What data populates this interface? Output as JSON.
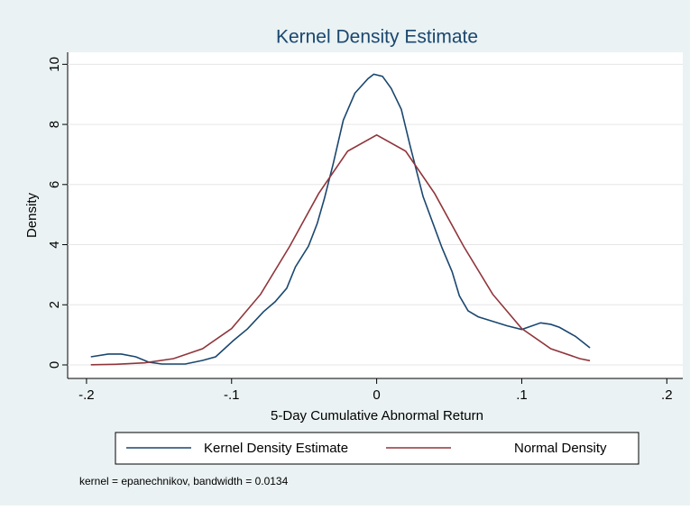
{
  "chart_data": {
    "type": "line",
    "title": "Kernel Density Estimate",
    "x_label": "5-Day Cumulative Abnormal Return",
    "y_label": "Density",
    "note": "kernel = epanechnikov, bandwidth = 0.0134",
    "xlim": [
      -0.213,
      0.211
    ],
    "ylim": [
      -0.45,
      10.4
    ],
    "xticks": [
      {
        "value": -0.2,
        "label": "-.2"
      },
      {
        "value": -0.1,
        "label": "-.1"
      },
      0,
      {
        "value": 0.1,
        "label": ".1"
      },
      {
        "value": 0.2,
        "label": ".2"
      }
    ],
    "yticks": [
      0,
      2,
      4,
      6,
      8,
      10
    ],
    "grid": true,
    "legend": "bottom",
    "series": [
      {
        "name": "Kernel Density Estimate",
        "color": "#1a476f",
        "x": [
          -0.197,
          -0.185,
          -0.176,
          -0.166,
          -0.157,
          -0.148,
          -0.132,
          -0.12,
          -0.111,
          -0.099,
          -0.089,
          -0.078,
          -0.07,
          -0.062,
          -0.056,
          -0.047,
          -0.041,
          -0.036,
          -0.03,
          -0.023,
          -0.015,
          -0.006,
          -0.002,
          0.004,
          0.01,
          0.017,
          0.023,
          0.032,
          0.045,
          0.052,
          0.057,
          0.063,
          0.07,
          0.08,
          0.09,
          0.1,
          0.106,
          0.113,
          0.12,
          0.126,
          0.137,
          0.147
        ],
        "values": [
          0.27,
          0.36,
          0.36,
          0.27,
          0.09,
          0.03,
          0.03,
          0.15,
          0.27,
          0.8,
          1.2,
          1.77,
          2.1,
          2.55,
          3.26,
          3.95,
          4.7,
          5.54,
          6.68,
          8.14,
          9.04,
          9.52,
          9.67,
          9.6,
          9.2,
          8.5,
          7.3,
          5.6,
          3.9,
          3.1,
          2.3,
          1.8,
          1.6,
          1.45,
          1.3,
          1.18,
          1.28,
          1.4,
          1.35,
          1.25,
          0.95,
          0.57
        ]
      },
      {
        "name": "Normal Density",
        "color": "#90353b",
        "x": [
          -0.197,
          -0.18,
          -0.16,
          -0.14,
          -0.12,
          -0.1,
          -0.08,
          -0.06,
          -0.04,
          -0.02,
          0,
          0.02,
          0.04,
          0.06,
          0.08,
          0.1,
          0.12,
          0.14,
          0.147
        ],
        "values": [
          0.006,
          0.02,
          0.07,
          0.21,
          0.54,
          1.21,
          2.35,
          3.94,
          5.7,
          7.11,
          7.65,
          7.11,
          5.7,
          3.94,
          2.35,
          1.21,
          0.54,
          0.21,
          0.14
        ]
      }
    ]
  }
}
